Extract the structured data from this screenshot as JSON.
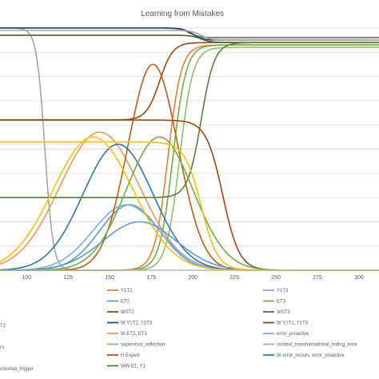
{
  "chart_data": {
    "type": "line",
    "title": "Learning from Mistakes",
    "xlabel": "",
    "ylabel": "",
    "x_ticks": [
      "100",
      "125",
      "150",
      "175",
      "200",
      "225",
      "250",
      "275",
      "300"
    ],
    "x_range": [
      84,
      312
    ],
    "y_range": [
      0,
      1
    ],
    "grid": "horizontal",
    "legend_position": "bottom",
    "y_gridlines": [
      0,
      0.1,
      0.2,
      0.3,
      0.4,
      0.5,
      0.6,
      0.7,
      0.8,
      0.9,
      1.0
    ],
    "series": [
      {
        "name": "Y1T2",
        "color": "#ED7D31",
        "shape": "rise",
        "params": {
          "c": 185,
          "w": 4,
          "lo": 0.0,
          "hi": 0.93
        }
      },
      {
        "name": "Y1T3",
        "color": "#A5A5A5",
        "shape": "fall",
        "params": {
          "c": 111,
          "w": 2.5,
          "lo": 0.0,
          "hi": 1.0
        }
      },
      {
        "name": "ET2",
        "color": "#5B9BD5",
        "shape": "bump",
        "params": {
          "c": 162,
          "w": 18,
          "lo": 0.0,
          "hi": 0.27
        }
      },
      {
        "name": "ET3",
        "color": "#70AD47",
        "shape": "rise",
        "params": {
          "c": 188,
          "w": 4,
          "lo": 0.0,
          "hi": 0.93
        }
      },
      {
        "name": "WST2",
        "color": "#9E480E",
        "shape": "rise",
        "params": {
          "c": 180,
          "w": 4,
          "lo": 0.62,
          "hi": 0.94
        }
      },
      {
        "name": "WST3",
        "color": "#636363",
        "shape": "fall",
        "params": {
          "c": 198,
          "w": 3,
          "lo": 0.96,
          "hi": 1.0
        }
      },
      {
        "name": "W Y1T2, Y1T3",
        "color": "#264478",
        "shape": "fall",
        "params": {
          "c": 200,
          "w": 3,
          "lo": 0.95,
          "hi": 1.0
        }
      },
      {
        "name": "W Y1T1, Y1T3",
        "color": "#43682B",
        "shape": "fall",
        "params": {
          "c": 205,
          "w": 3,
          "lo": 0.94,
          "hi": 0.97
        }
      },
      {
        "name": "W ET2, ET3",
        "color": "#F1975A",
        "shape": "bump",
        "params": {
          "c": 144,
          "w": 24,
          "lo": 0.0,
          "hi": 0.57
        }
      },
      {
        "name": "error_proactive",
        "color": "#7CAFDD",
        "shape": "bump",
        "params": {
          "c": 160,
          "w": 20,
          "lo": 0.0,
          "hi": 0.27
        }
      },
      {
        "name": "supervisor_reflection",
        "color": "#8CC168",
        "shape": "rise",
        "params": {
          "c": 192,
          "w": 4,
          "lo": 0.0,
          "hi": 0.92
        }
      },
      {
        "name": "context_transformational_hiding_error",
        "color": "#A5A5A5",
        "shape": "fall",
        "params": {
          "c": 205,
          "w": 3,
          "lo": 0.95,
          "hi": 0.99
        }
      },
      {
        "name": "H Expert",
        "color": "#C55A11",
        "shape": "bump",
        "params": {
          "c": 176,
          "w": 15,
          "lo": 0.0,
          "hi": 0.85
        }
      },
      {
        "name": "W error_occurs, error_proactive",
        "color": "#2E75B6",
        "shape": "bump",
        "params": {
          "c": 155,
          "w": 21,
          "lo": 0.0,
          "hi": 0.52
        }
      },
      {
        "name": "WW E1, Y1",
        "color": "#548235",
        "shape": "step",
        "params": {
          "c": 205,
          "w": 4,
          "lo": 0.3,
          "hi": 0.94
        }
      },
      {
        "name": "",
        "color": "#FFC000",
        "shape": "bump",
        "params": {
          "c": 140,
          "w": 24,
          "lo": 0.0,
          "hi": 0.55
        }
      },
      {
        "name": "",
        "color": "#9E480E",
        "shape": "stepdown",
        "params": {
          "c": 218,
          "w": 5,
          "lo": 0.0,
          "hi": 0.62
        }
      },
      {
        "name": "",
        "color": "#5B9BD5",
        "shape": "bump",
        "params": {
          "c": 168,
          "w": 22,
          "lo": 0.0,
          "hi": 0.2
        }
      },
      {
        "name": "",
        "color": "#70AD47",
        "shape": "bump",
        "params": {
          "c": 180,
          "w": 20,
          "lo": 0.0,
          "hi": 0.55
        }
      },
      {
        "name": "",
        "color": "#FFC000",
        "shape": "stepdown",
        "params": {
          "c": 205,
          "w": 5,
          "lo": 0.0,
          "hi": 0.53
        }
      }
    ]
  },
  "legend": [
    {
      "label": "Y1T2",
      "color": "#ED7D31"
    },
    {
      "label": "Y1T3",
      "color": "#A5A5A5"
    },
    {
      "label": "ET2",
      "color": "#5B9BD5"
    },
    {
      "label": "ET3",
      "color": "#70AD47"
    },
    {
      "label": "WST2",
      "color": "#9E480E"
    },
    {
      "label": "WST3",
      "color": "#636363"
    },
    {
      "label": "W Y1T2, Y1T3",
      "color": "#264478"
    },
    {
      "label": "W Y1T1, Y1T3",
      "color": "#43682B"
    },
    {
      "label": "W ET2, ET3",
      "color": "#F1975A"
    },
    {
      "label": "error_proactive",
      "color": "#7CAFDD"
    },
    {
      "label": "supervisor_reflection",
      "color": "#8CC168"
    },
    {
      "label": "context_transformational_hiding_error",
      "color": "#A5A5A5"
    },
    {
      "label": "H Expert",
      "color": "#C55A11"
    },
    {
      "label": "W error_occurs, error_proactive",
      "color": "#2E75B6"
    },
    {
      "label": "WW E1, Y1",
      "color": "#548235"
    }
  ],
  "legend_left_fragments": [
    {
      "text": "T2",
      "color": "#264478"
    },
    {
      "text": "rs",
      "color": "#636363"
    },
    {
      "text": "orkshop_trigger",
      "color": "#636363"
    }
  ]
}
